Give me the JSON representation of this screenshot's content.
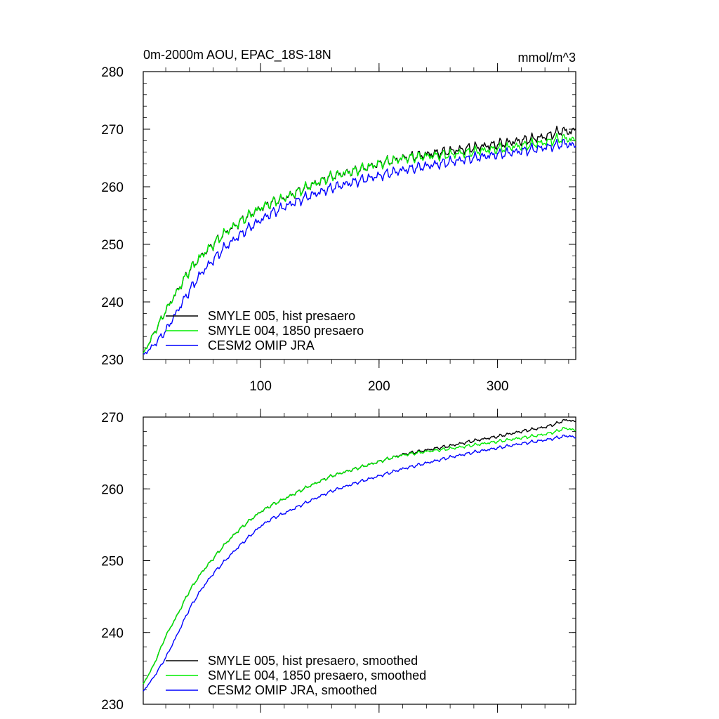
{
  "chart_data": [
    {
      "type": "line",
      "title": "0m-2000m AOU, EPAC_18S-18N",
      "units": "mmol/m^3",
      "xlim": [
        1,
        366
      ],
      "ylim": [
        230,
        280
      ],
      "x_ticks": [
        100,
        200,
        300
      ],
      "y_ticks": [
        230,
        240,
        250,
        260,
        270,
        280
      ],
      "grid": false,
      "legend_position": "lower-left",
      "series": [
        {
          "name": "SMYLE 005, hist presaero",
          "color": "#000000",
          "x": [
            1,
            10,
            20,
            30,
            40,
            50,
            60,
            70,
            80,
            90,
            100,
            110,
            120,
            140,
            160,
            180,
            200,
            210,
            220,
            240,
            260,
            280,
            300,
            320,
            340,
            350,
            355,
            360,
            366
          ],
          "y": [
            231.0,
            234.5,
            238.5,
            242.0,
            245.5,
            248.0,
            250.0,
            252.0,
            253.5,
            255.0,
            256.3,
            257.3,
            258.0,
            260.0,
            261.8,
            262.8,
            264.0,
            264.5,
            265.0,
            265.6,
            266.2,
            266.8,
            267.4,
            268.0,
            268.7,
            269.4,
            269.8,
            269.5,
            269.8
          ],
          "noise": 1.0
        },
        {
          "name": "SMYLE 004, 1850 presaero",
          "color": "#00ee00",
          "x": [
            1,
            10,
            20,
            30,
            40,
            50,
            60,
            70,
            80,
            90,
            100,
            110,
            120,
            140,
            160,
            180,
            200,
            210,
            220,
            240,
            260,
            280,
            300,
            320,
            340,
            350,
            355,
            360,
            366
          ],
          "y": [
            231.0,
            234.5,
            238.5,
            242.0,
            245.5,
            248.0,
            250.0,
            252.0,
            253.5,
            255.0,
            256.3,
            257.3,
            258.0,
            260.0,
            261.8,
            262.8,
            264.0,
            264.5,
            264.9,
            265.3,
            265.6,
            266.1,
            266.6,
            267.1,
            267.7,
            268.2,
            268.4,
            268.3,
            268.0
          ],
          "noise": 1.0
        },
        {
          "name": "CESM2 OMIP JRA",
          "color": "#0000ff",
          "x": [
            1,
            10,
            20,
            30,
            40,
            50,
            60,
            70,
            80,
            90,
            100,
            110,
            120,
            140,
            160,
            180,
            200,
            210,
            220,
            240,
            260,
            280,
            300,
            320,
            340,
            350,
            355,
            360,
            366
          ],
          "y": [
            230.8,
            232.5,
            235.0,
            238.5,
            242.0,
            245.0,
            247.3,
            249.5,
            251.2,
            252.8,
            254.2,
            255.5,
            256.5,
            258.3,
            259.8,
            260.9,
            261.9,
            262.4,
            262.9,
            263.6,
            264.3,
            265.0,
            265.6,
            266.2,
            266.8,
            267.2,
            267.5,
            267.4,
            267.0
          ],
          "noise": 1.0
        }
      ]
    },
    {
      "type": "line",
      "xlim": [
        1,
        366
      ],
      "ylim": [
        230,
        270
      ],
      "x_ticks": [
        100,
        200,
        300
      ],
      "x_tick_labels_shown": false,
      "y_ticks": [
        230,
        240,
        250,
        260,
        270
      ],
      "grid": false,
      "legend_position": "lower-left",
      "series": [
        {
          "name": "SMYLE 005, hist presaero, smoothed",
          "color": "#000000",
          "x": [
            1,
            10,
            20,
            30,
            40,
            50,
            60,
            70,
            80,
            90,
            100,
            110,
            120,
            140,
            160,
            180,
            200,
            210,
            220,
            240,
            260,
            280,
            300,
            320,
            340,
            350,
            355,
            360,
            366
          ],
          "y": [
            232.8,
            235.5,
            239.5,
            242.5,
            245.8,
            248.3,
            250.3,
            252.3,
            254.0,
            255.5,
            256.8,
            257.8,
            258.6,
            260.3,
            261.8,
            262.8,
            263.8,
            264.3,
            264.8,
            265.4,
            266.0,
            266.7,
            267.3,
            268.0,
            268.6,
            269.1,
            269.5,
            269.6,
            269.3
          ],
          "noise": 0.25
        },
        {
          "name": "SMYLE 004, 1850 presaero, smoothed",
          "color": "#00ee00",
          "x": [
            1,
            10,
            20,
            30,
            40,
            50,
            60,
            70,
            80,
            90,
            100,
            110,
            120,
            140,
            160,
            180,
            200,
            210,
            220,
            240,
            260,
            280,
            300,
            320,
            340,
            350,
            355,
            360,
            366
          ],
          "y": [
            232.8,
            235.5,
            239.5,
            242.5,
            245.8,
            248.3,
            250.3,
            252.3,
            254.0,
            255.5,
            256.8,
            257.8,
            258.6,
            260.3,
            261.8,
            262.8,
            263.8,
            264.3,
            264.7,
            265.2,
            265.6,
            266.1,
            266.6,
            267.1,
            267.6,
            268.0,
            268.4,
            268.4,
            268.1
          ],
          "noise": 0.25
        },
        {
          "name": "CESM2 OMIP JRA, smoothed",
          "color": "#0000ff",
          "x": [
            1,
            10,
            20,
            30,
            40,
            50,
            60,
            70,
            80,
            90,
            100,
            110,
            120,
            140,
            160,
            180,
            200,
            210,
            220,
            240,
            260,
            280,
            300,
            320,
            340,
            350,
            355,
            360,
            366
          ],
          "y": [
            231.8,
            233.8,
            236.5,
            239.8,
            243.3,
            246.0,
            248.2,
            250.0,
            251.7,
            253.3,
            254.8,
            255.9,
            256.6,
            258.2,
            259.7,
            260.8,
            261.8,
            262.3,
            262.8,
            263.6,
            264.4,
            265.1,
            265.7,
            266.3,
            266.8,
            267.1,
            267.3,
            267.4,
            267.1
          ],
          "noise": 0.25
        }
      ]
    }
  ]
}
